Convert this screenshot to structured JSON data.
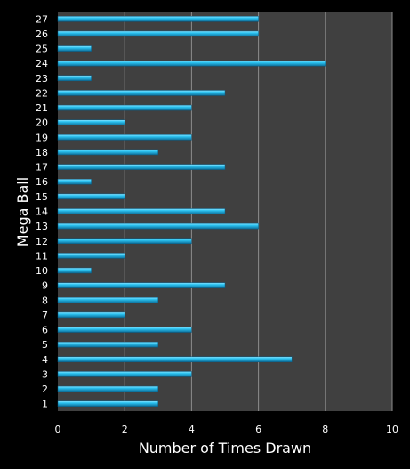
{
  "chart_data": {
    "type": "bar",
    "orientation": "horizontal",
    "xlabel": "Number of Times Drawn",
    "ylabel": "Mega Ball",
    "xlim": [
      0,
      10
    ],
    "xticks": [
      "0",
      "2",
      "4",
      "6",
      "8",
      "10"
    ],
    "grid": true,
    "categories": [
      "1",
      "2",
      "3",
      "4",
      "5",
      "6",
      "7",
      "8",
      "9",
      "10",
      "11",
      "12",
      "13",
      "14",
      "15",
      "16",
      "17",
      "18",
      "19",
      "20",
      "21",
      "22",
      "23",
      "24",
      "25",
      "26",
      "27"
    ],
    "values": [
      3,
      3,
      4,
      7,
      3,
      4,
      2,
      3,
      5,
      1,
      2,
      4,
      6,
      5,
      2,
      1,
      5,
      3,
      4,
      2,
      4,
      5,
      1,
      8,
      1,
      6,
      6
    ],
    "colors": {
      "background": "#000000",
      "plot_area": "#404040",
      "bar": "#22b8e6",
      "grid": "#8c8c8c",
      "text": "#ffffff"
    }
  }
}
